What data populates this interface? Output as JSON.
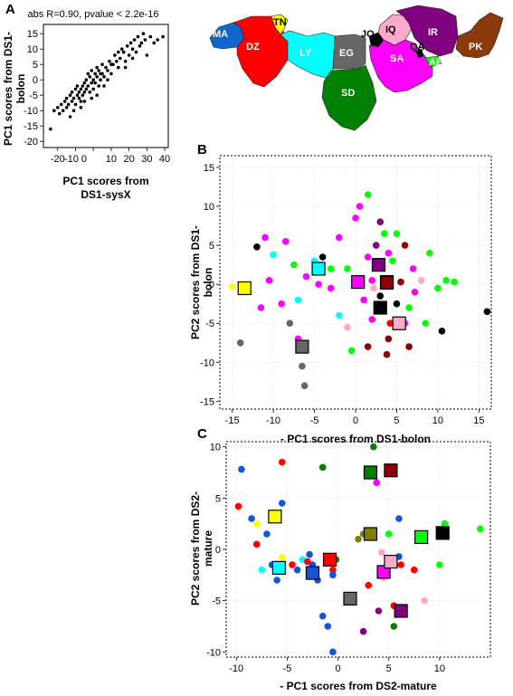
{
  "panel_labels": {
    "a": "A",
    "b": "B",
    "c": "C"
  },
  "chart_data": [
    {
      "id": "A",
      "type": "scatter",
      "title": "abs R=0.90, pvalue < 2.2e-16",
      "xlabel": [
        "PC1 scores from",
        "DS1-sysX"
      ],
      "ylabel": [
        "PC1 scores from DS1-",
        "bolon"
      ],
      "xlim": [
        -28,
        42
      ],
      "ylim": [
        -22,
        18
      ],
      "xticks": [
        -20,
        -10,
        0,
        10,
        20,
        30,
        40
      ],
      "xtick_labels": [
        "-20",
        "-10 0",
        "",
        "10",
        "20",
        "30",
        "40"
      ],
      "yticks": [
        -20,
        -15,
        -10,
        -5,
        0,
        5,
        10,
        15
      ],
      "color": "#000000",
      "points": [
        [
          -24,
          -16
        ],
        [
          -22,
          -10
        ],
        [
          -20,
          -9
        ],
        [
          -19,
          -11
        ],
        [
          -18,
          -8
        ],
        [
          -17,
          -10
        ],
        [
          -16,
          -7
        ],
        [
          -15,
          -6
        ],
        [
          -14,
          -8
        ],
        [
          -13,
          -5
        ],
        [
          -12,
          -7
        ],
        [
          -12,
          -4
        ],
        [
          -11,
          -6
        ],
        [
          -10,
          -3
        ],
        [
          -10,
          -8
        ],
        [
          -9,
          -5
        ],
        [
          -9,
          -2
        ],
        [
          -8,
          -6
        ],
        [
          -8,
          -4
        ],
        [
          -7,
          -3
        ],
        [
          -7,
          -7
        ],
        [
          -6,
          -5
        ],
        [
          -6,
          -2
        ],
        [
          -5,
          -4
        ],
        [
          -5,
          -1
        ],
        [
          -4,
          -3
        ],
        [
          -4,
          0
        ],
        [
          -3,
          -2
        ],
        [
          -3,
          2
        ],
        [
          -2,
          -4
        ],
        [
          -2,
          1
        ],
        [
          -1,
          -1
        ],
        [
          -1,
          3
        ],
        [
          0,
          0
        ],
        [
          0,
          -3
        ],
        [
          1,
          2
        ],
        [
          1,
          -1
        ],
        [
          2,
          4
        ],
        [
          2,
          1
        ],
        [
          3,
          -2
        ],
        [
          3,
          3
        ],
        [
          4,
          0
        ],
        [
          5,
          5
        ],
        [
          5,
          2
        ],
        [
          6,
          1
        ],
        [
          7,
          4
        ],
        [
          8,
          3
        ],
        [
          9,
          6
        ],
        [
          10,
          2
        ],
        [
          11,
          5
        ],
        [
          12,
          8
        ],
        [
          13,
          6
        ],
        [
          14,
          4
        ],
        [
          15,
          7
        ],
        [
          16,
          10
        ],
        [
          17,
          9
        ],
        [
          18,
          6
        ],
        [
          19,
          11
        ],
        [
          20,
          8
        ],
        [
          21,
          12
        ],
        [
          22,
          10
        ],
        [
          23,
          13
        ],
        [
          24,
          9
        ],
        [
          25,
          14
        ],
        [
          26,
          11
        ],
        [
          27,
          12
        ],
        [
          28,
          15
        ],
        [
          29,
          13
        ],
        [
          30,
          8
        ],
        [
          32,
          14
        ],
        [
          34,
          12
        ],
        [
          36,
          13
        ],
        [
          39,
          14
        ],
        [
          -15,
          -9
        ],
        [
          -13,
          -12
        ],
        [
          -11,
          -10
        ],
        [
          -7,
          -9
        ],
        [
          -5,
          -7
        ],
        [
          -1,
          -6
        ],
        [
          2,
          -5
        ],
        [
          4,
          2
        ],
        [
          6,
          -2
        ],
        [
          8,
          0
        ],
        [
          10,
          5
        ],
        [
          14,
          9
        ],
        [
          18,
          4
        ],
        [
          22,
          7
        ]
      ]
    },
    {
      "id": "B",
      "type": "scatter",
      "xlabel": "- PC1 scores from DS1-bolon",
      "ylabel": [
        "PC2 scores from DS1-",
        "bolon"
      ],
      "xlim": [
        -16.5,
        16.5
      ],
      "ylim": [
        -16,
        16.5
      ],
      "xticks": [
        -15,
        -10,
        -5,
        0,
        5,
        10,
        15
      ],
      "yticks": [
        -15,
        -10,
        -5,
        0,
        5,
        10,
        15
      ],
      "grid": true,
      "points": [
        [
          -15,
          -0.3,
          "#ffff00"
        ],
        [
          -14,
          -7.5,
          "#666666"
        ],
        [
          -13,
          -0.8,
          "#ffff00"
        ],
        [
          -12,
          4.8,
          "#000000"
        ],
        [
          -11.5,
          -3,
          "#ff00ff"
        ],
        [
          -11,
          6,
          "#ff00ff"
        ],
        [
          -10.5,
          0.5,
          "#ff00ff"
        ],
        [
          -10,
          3.8,
          "#00ffff"
        ],
        [
          -9,
          -2.5,
          "#ff00ff"
        ],
        [
          -8.5,
          5.5,
          "#ff00ff"
        ],
        [
          -8,
          -5,
          "#666666"
        ],
        [
          -7.5,
          2.5,
          "#00ff00"
        ],
        [
          -7,
          -2,
          "#00ffff"
        ],
        [
          -6.5,
          -10.5,
          "#666666"
        ],
        [
          -6.2,
          -13,
          "#666666"
        ],
        [
          -6,
          1,
          "#ff00ff"
        ],
        [
          -5,
          3,
          "#00ffff"
        ],
        [
          -4.5,
          0,
          "#ff00ff"
        ],
        [
          -4,
          3.5,
          "#000000"
        ],
        [
          -3,
          -0.5,
          "#ff00ff"
        ],
        [
          -3,
          2,
          "#00ff00"
        ],
        [
          -2,
          6,
          "#ff00ff"
        ],
        [
          -1,
          2,
          "#00ff00"
        ],
        [
          -1,
          -5.5,
          "#ffaacc"
        ],
        [
          -0.5,
          -8.5,
          "#00ff00"
        ],
        [
          0,
          8.5,
          "#ff00ff"
        ],
        [
          0.5,
          10,
          "#ff00ff"
        ],
        [
          1,
          -2,
          "#ff00ff"
        ],
        [
          1.5,
          3.5,
          "#ff00ff"
        ],
        [
          2,
          0.5,
          "#ff00ff"
        ],
        [
          2,
          -4.5,
          "#ff00ff"
        ],
        [
          2.5,
          5,
          "#800080"
        ],
        [
          3,
          8,
          "#800080"
        ],
        [
          3,
          -1.5,
          "#000000"
        ],
        [
          3.5,
          6.5,
          "#00ff00"
        ],
        [
          3.5,
          0,
          "#ff00ff"
        ],
        [
          4,
          4,
          "#ff00ff"
        ],
        [
          4,
          -7,
          "#8b0000"
        ],
        [
          4.2,
          -5,
          "#ff0000"
        ],
        [
          4.5,
          3,
          "#00ff00"
        ],
        [
          5,
          -2.5,
          "#000000"
        ],
        [
          5.5,
          0.3,
          "#8b0000"
        ],
        [
          6,
          5,
          "#8b0000"
        ],
        [
          6,
          -5,
          "#ff00ff"
        ],
        [
          6.5,
          -3,
          "#00ff00"
        ],
        [
          7,
          2,
          "#ff00ff"
        ],
        [
          7.2,
          -1,
          "#ff00ff"
        ],
        [
          8,
          0.5,
          "#ffaacc"
        ],
        [
          8.5,
          -5,
          "#00ff00"
        ],
        [
          9,
          4,
          "#00ff00"
        ],
        [
          10,
          -0.5,
          "#00ff00"
        ],
        [
          10.5,
          -6,
          "#000000"
        ],
        [
          11,
          0.5,
          "#00ff00"
        ],
        [
          12,
          0.3,
          "#00ff00"
        ],
        [
          16,
          -3.5,
          "#000000"
        ],
        [
          2.2,
          -0.5,
          "#ffaacc"
        ],
        [
          -7,
          -7,
          "#ff00ff"
        ],
        [
          1.5,
          -8,
          "#8b0000"
        ],
        [
          5,
          6.5,
          "#00ff00"
        ],
        [
          6.5,
          -8,
          "#8b0000"
        ],
        [
          1.5,
          11.5,
          "#00ff00"
        ],
        [
          -2,
          -4,
          "#00ffff"
        ],
        [
          3.8,
          -9,
          "#8b0000"
        ]
      ],
      "squares": [
        [
          -13.5,
          -0.5,
          "#ffff00"
        ],
        [
          -4.5,
          2,
          "#00ffff"
        ],
        [
          -6.5,
          -8,
          "#666666"
        ],
        [
          0.3,
          0.3,
          "#ff00ff"
        ],
        [
          2.8,
          2.5,
          "#800080"
        ],
        [
          3.8,
          0.3,
          "#00ff00"
        ],
        [
          3,
          -3,
          "#000000"
        ],
        [
          3.8,
          0.2,
          "#8b0000"
        ],
        [
          5.3,
          -5,
          "#ffaacc"
        ]
      ]
    },
    {
      "id": "C",
      "type": "scatter",
      "xlabel": "- PC1 scores from DS2-mature",
      "ylabel": [
        "PC2 scores from DS2-",
        "mature"
      ],
      "xlim": [
        -11,
        15
      ],
      "ylim": [
        -10.5,
        10.5
      ],
      "xticks": [
        -10,
        -5,
        0,
        5,
        10
      ],
      "yticks": [
        -10,
        -5,
        0,
        5,
        10
      ],
      "grid": true,
      "points": [
        [
          -9.5,
          7.8,
          "#1155dd"
        ],
        [
          -9.8,
          4.2,
          "#ff0000"
        ],
        [
          -8.5,
          3,
          "#1155dd"
        ],
        [
          -8,
          2.5,
          "#ffff00"
        ],
        [
          -8,
          0.5,
          "#ff0000"
        ],
        [
          -7.5,
          -2,
          "#00ffff"
        ],
        [
          -7,
          1.5,
          "#1155dd"
        ],
        [
          -6.5,
          -1.5,
          "#1155dd"
        ],
        [
          -6,
          -3,
          "#1155dd"
        ],
        [
          -5.5,
          8.5,
          "#ff0000"
        ],
        [
          -5.5,
          -0.8,
          "#ffff00"
        ],
        [
          -5.5,
          4.5,
          "#1155dd"
        ],
        [
          -4.5,
          -1.5,
          "#ff0000"
        ],
        [
          -4,
          -2,
          "#1155dd"
        ],
        [
          -3.5,
          -1,
          "#00ffff"
        ],
        [
          -2.5,
          -1.5,
          "#1155dd"
        ],
        [
          -2,
          -3,
          "#1155dd"
        ],
        [
          -1.5,
          8,
          "#008000"
        ],
        [
          -1.5,
          -6.5,
          "#1155dd"
        ],
        [
          -1,
          -7.5,
          "#1155dd"
        ],
        [
          -0.5,
          -10,
          "#1155dd"
        ],
        [
          -0.5,
          -2,
          "#ff0000"
        ],
        [
          -0.2,
          -1,
          "#008000"
        ],
        [
          -0.5,
          -2.5,
          "#1155dd"
        ],
        [
          2,
          1,
          "#808000"
        ],
        [
          2.5,
          1.5,
          "#808000"
        ],
        [
          2.5,
          -8,
          "#800080"
        ],
        [
          3,
          -3.5,
          "#ff0000"
        ],
        [
          3.5,
          10,
          "#008000"
        ],
        [
          3.8,
          6.5,
          "#ff00ff"
        ],
        [
          4,
          -6,
          "#800080"
        ],
        [
          4.3,
          -0.3,
          "#ffaacc"
        ],
        [
          4.5,
          -2.8,
          "#ffaacc"
        ],
        [
          5,
          1.5,
          "#00ff00"
        ],
        [
          5.5,
          -5.5,
          "#ff0000"
        ],
        [
          5.5,
          -7.5,
          "#008000"
        ],
        [
          6,
          3,
          "#1155dd"
        ],
        [
          6,
          -0.7,
          "#1155dd"
        ],
        [
          6.2,
          -1.5,
          "#ff0000"
        ],
        [
          7.5,
          -2,
          "#ff0000"
        ],
        [
          8.5,
          -5,
          "#ffaacc"
        ],
        [
          10,
          -1.5,
          "#00ff00"
        ],
        [
          10.5,
          2.5,
          "#00ff00"
        ],
        [
          14,
          2,
          "#00ff00"
        ],
        [
          -3,
          -1.2,
          "#ff0000"
        ],
        [
          -2.8,
          -0.5,
          "#1155dd"
        ]
      ],
      "squares": [
        [
          -6.2,
          3.2,
          "#ffff00"
        ],
        [
          -5.8,
          -1.8,
          "#00ffff"
        ],
        [
          -2.5,
          -2.3,
          "#1155dd"
        ],
        [
          -0.8,
          -1,
          "#ff0000"
        ],
        [
          3.2,
          7.5,
          "#008000"
        ],
        [
          5.2,
          7.7,
          "#8b0000"
        ],
        [
          3.2,
          1.5,
          "#808000"
        ],
        [
          1.2,
          -4.8,
          "#666666"
        ],
        [
          4.5,
          -2.2,
          "#ff00ff"
        ],
        [
          5.2,
          -1.2,
          "#ffaacc"
        ],
        [
          6.2,
          -6,
          "#800080"
        ],
        [
          8.2,
          1.2,
          "#00ff00"
        ],
        [
          10.3,
          1.6,
          "#000000"
        ]
      ]
    }
  ],
  "map": {
    "regions": [
      {
        "label": "MA",
        "color": "#1166cc"
      },
      {
        "label": "DZ",
        "color": "#ff0000"
      },
      {
        "label": "TN",
        "color": "#ffff00"
      },
      {
        "label": "LY",
        "color": "#00ffff"
      },
      {
        "label": "EG",
        "color": "#666666"
      },
      {
        "label": "SD",
        "color": "#008000"
      },
      {
        "label": "JO",
        "color": "#000000"
      },
      {
        "label": "IQ",
        "color": "#ffaacc"
      },
      {
        "label": "IR",
        "color": "#800080"
      },
      {
        "label": "SA",
        "color": "#ff00ff"
      },
      {
        "label": "QA",
        "color": "#000000"
      },
      {
        "label": "AE",
        "color": "#00ff00"
      },
      {
        "label": "PK",
        "color": "#8b3a0a"
      }
    ]
  }
}
